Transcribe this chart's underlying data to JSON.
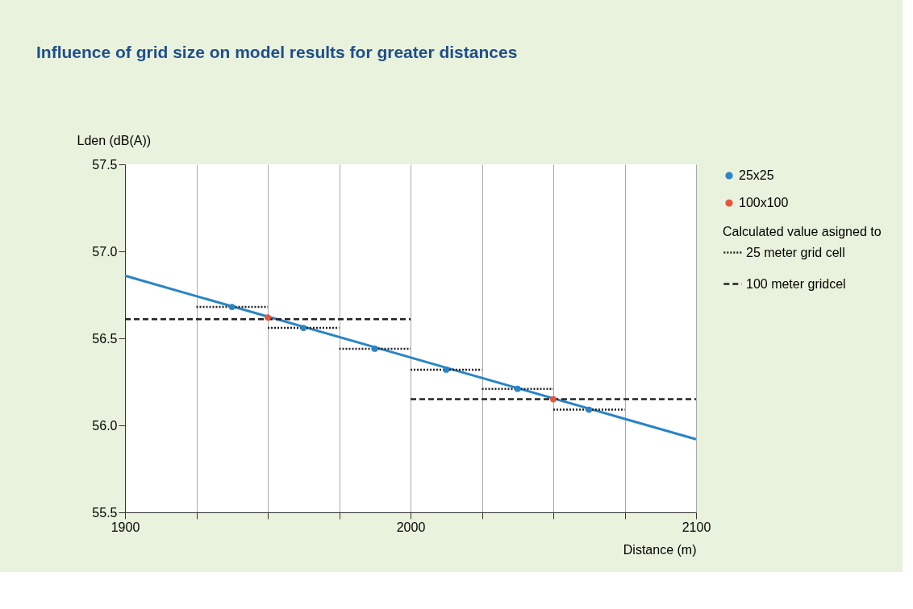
{
  "chart_data": {
    "type": "line",
    "title": "Influence of grid size on model results for greater distances",
    "xlabel": "Distance (m)",
    "ylabel": "Lden (dB(A))",
    "legend_title": "Calculated value asigned to",
    "xlim": [
      1900,
      2100
    ],
    "xticks": [
      1900,
      {
        "value": 1925,
        "label": null
      },
      {
        "value": 1950,
        "label": null
      },
      {
        "value": 1975,
        "label": null
      },
      2000,
      {
        "value": 2025,
        "label": null
      },
      {
        "value": 2050,
        "label": null
      },
      {
        "value": 2075,
        "label": null
      },
      2100
    ],
    "ylim": [
      55.5,
      57.5
    ],
    "yticks": [
      {
        "value": 55.5,
        "label": "55.5"
      },
      {
        "value": 56.0,
        "label": "56.0"
      },
      {
        "value": 56.5,
        "label": "56.5"
      },
      {
        "value": 57.0,
        "label": "57.0"
      },
      {
        "value": 57.5,
        "label": "57.5"
      }
    ],
    "grid": "x",
    "legend": "right",
    "series": [
      {
        "name": "25x25",
        "color": "#2a84c6",
        "line_style": "solid",
        "x": [
          1900,
          2100
        ],
        "values": [
          56.86,
          55.92
        ]
      },
      {
        "name": "25 meter grid cell",
        "color": "#222222",
        "line_style": "dotted",
        "x": [
          1925,
          1950
        ],
        "values": [
          56.68,
          56.68
        ]
      },
      {
        "color": "#222222",
        "line_style": "dotted",
        "x": [
          1950,
          1975
        ],
        "values": [
          56.56,
          56.56
        ]
      },
      {
        "color": "#222222",
        "line_style": "dotted",
        "x": [
          1975,
          2000
        ],
        "values": [
          56.44,
          56.44
        ]
      },
      {
        "color": "#222222",
        "line_style": "dotted",
        "x": [
          2000,
          2025
        ],
        "values": [
          56.32,
          56.32
        ]
      },
      {
        "color": "#222222",
        "line_style": "dotted",
        "x": [
          2025,
          2050
        ],
        "values": [
          56.21,
          56.21
        ]
      },
      {
        "color": "#222222",
        "line_style": "dotted",
        "x": [
          2050,
          2075
        ],
        "values": [
          56.09,
          56.09
        ]
      },
      {
        "name": "100 meter gridcel",
        "color": "#222222",
        "line_style": "dashed",
        "x": [
          1900,
          2000
        ],
        "values": [
          56.61,
          56.61
        ]
      },
      {
        "color": "#222222",
        "line_style": "dashed",
        "x": [
          2000,
          2100
        ],
        "values": [
          56.15,
          56.15
        ]
      },
      {
        "type": "scatter",
        "color": "#2a84c6",
        "marker": "circle",
        "x": [
          1937.5,
          1962.5,
          1987.5,
          2012.5,
          2037.5,
          2062.5
        ],
        "values": [
          56.68,
          56.56,
          56.44,
          56.32,
          56.21,
          56.09
        ]
      },
      {
        "name": "100x100",
        "type": "scatter",
        "color": "#e8553c",
        "marker": "circle",
        "x": [
          1950,
          2050
        ],
        "values": [
          56.62,
          56.15
        ]
      }
    ]
  }
}
